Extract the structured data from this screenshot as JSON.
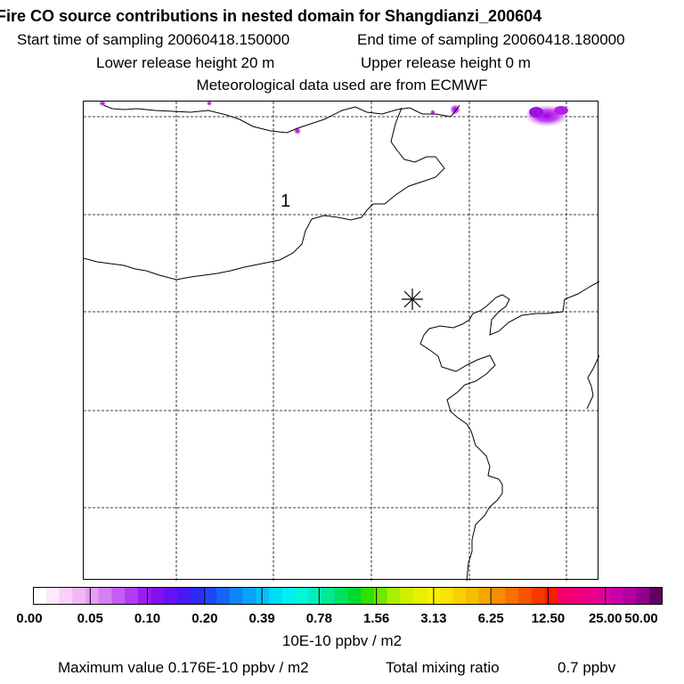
{
  "header": {
    "title": "Fire CO source contributions in nested domain for Shangdianzi_200604",
    "start_time": "Start time of sampling 20060418.150000",
    "end_time": "End time of sampling 20060418.180000",
    "lower_release": "Lower release height   20 m",
    "upper_release": "Upper release height    0 m",
    "met_data": "Meteorological data used are from ECMWF"
  },
  "map": {
    "contour_label": "1",
    "receptor_symbol": "station-asterisk"
  },
  "colorbar": {
    "tick_labels": [
      "0.00",
      "0.05",
      "0.10",
      "0.20",
      "0.39",
      "0.78",
      "1.56",
      "3.13",
      "6.25",
      "12.50",
      "25.00",
      "50.00"
    ],
    "unit_label": "10E-10 ppbv / m2",
    "colors": [
      "#ffffff",
      "#fde9fd",
      "#f8d0f8",
      "#f3b6f3",
      "#e59df2",
      "#d57ff2",
      "#c45ef2",
      "#b23cf2",
      "#9a1ef0",
      "#7f10f0",
      "#6414f4",
      "#4a18f6",
      "#2b2cf8",
      "#1c49f8",
      "#1466f8",
      "#0f86f8",
      "#06a4f8",
      "#00c0f8",
      "#00dcf8",
      "#00f0f0",
      "#00f8d8",
      "#00f0b8",
      "#00e890",
      "#00e060",
      "#00d830",
      "#30e000",
      "#70e800",
      "#a8f000",
      "#d0f000",
      "#e8f000",
      "#f8f000",
      "#f8e400",
      "#f8d000",
      "#f8bc00",
      "#f8a400",
      "#f88c00",
      "#f87000",
      "#f85400",
      "#f83800",
      "#f81c00",
      "#f8006a",
      "#f0007a",
      "#e8008a",
      "#e0009a",
      "#c800a8",
      "#b000a0",
      "#900088",
      "#600060"
    ]
  },
  "footer": {
    "max_value": "Maximum value  0.176E-10 ppbv / m2",
    "total_mixing": "Total mixing ratio",
    "total_value": "0.7 ppbv"
  }
}
